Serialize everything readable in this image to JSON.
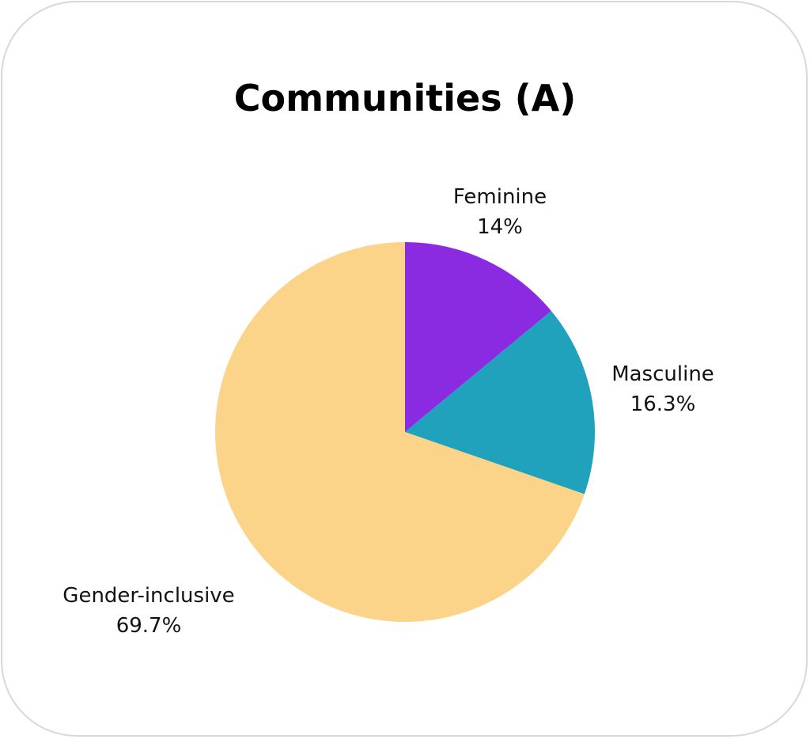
{
  "chart_data": {
    "type": "pie",
    "title": "Communities (A)",
    "slices": [
      {
        "label": "Feminine",
        "value": 14.0,
        "display": "14%",
        "color": "#8a2be2"
      },
      {
        "label": "Masculine",
        "value": 16.3,
        "display": "16.3%",
        "color": "#20a1bc"
      },
      {
        "label": "Gender-inclusive",
        "value": 69.7,
        "display": "69.7%",
        "color": "#fbd389"
      }
    ],
    "start": "12 o'clock",
    "direction": "clockwise",
    "legend": "none",
    "data_labels": "outside"
  }
}
